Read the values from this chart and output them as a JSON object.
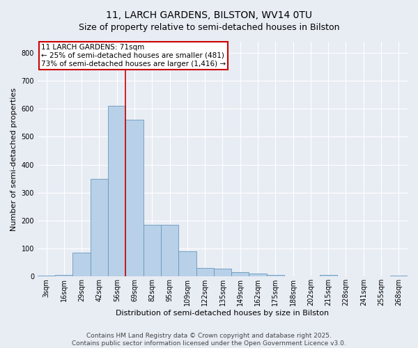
{
  "title_line1": "11, LARCH GARDENS, BILSTON, WV14 0TU",
  "title_line2": "Size of property relative to semi-detached houses in Bilston",
  "xlabel": "Distribution of semi-detached houses by size in Bilston",
  "ylabel": "Number of semi-detached properties",
  "footer_line1": "Contains HM Land Registry data © Crown copyright and database right 2025.",
  "footer_line2": "Contains public sector information licensed under the Open Government Licence v3.0.",
  "categories": [
    "3sqm",
    "16sqm",
    "29sqm",
    "42sqm",
    "56sqm",
    "69sqm",
    "82sqm",
    "95sqm",
    "109sqm",
    "122sqm",
    "135sqm",
    "149sqm",
    "162sqm",
    "175sqm",
    "188sqm",
    "202sqm",
    "215sqm",
    "228sqm",
    "241sqm",
    "255sqm",
    "268sqm"
  ],
  "values": [
    2,
    5,
    85,
    350,
    610,
    560,
    185,
    185,
    90,
    30,
    28,
    15,
    10,
    5,
    0,
    0,
    5,
    0,
    0,
    0,
    2
  ],
  "bar_color": "#b8d0e8",
  "bar_edge_color": "#6699bb",
  "background_color": "#e8edf4",
  "plot_bg_color": "#e8edf4",
  "red_line_index": 5,
  "annotation_title": "11 LARCH GARDENS: 71sqm",
  "annotation_line1": "← 25% of semi-detached houses are smaller (481)",
  "annotation_line2": "73% of semi-detached houses are larger (1,416) →",
  "annotation_box_facecolor": "#ffffff",
  "annotation_border_color": "#cc0000",
  "red_line_color": "#cc0000",
  "ylim": [
    0,
    840
  ],
  "yticks": [
    0,
    100,
    200,
    300,
    400,
    500,
    600,
    700,
    800
  ],
  "title_fontsize": 10,
  "axis_label_fontsize": 8,
  "tick_fontsize": 7,
  "annotation_fontsize": 7.5,
  "footer_fontsize": 6.5
}
